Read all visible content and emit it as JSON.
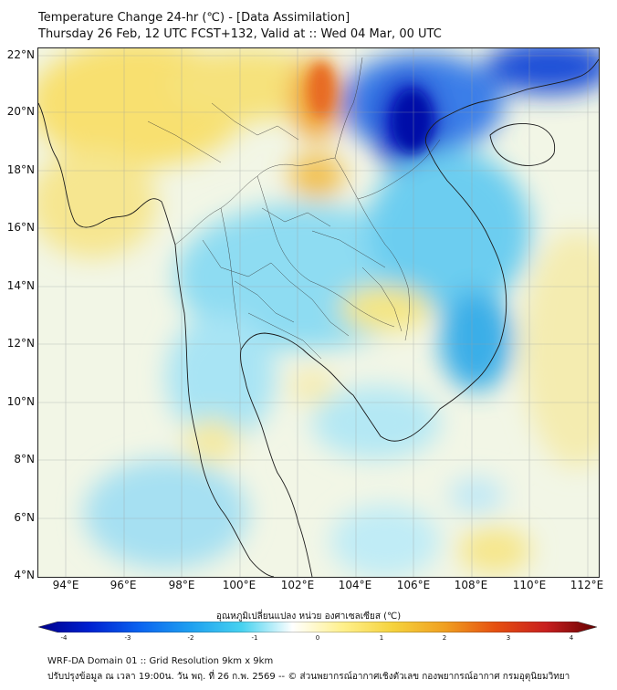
{
  "title_line1": "Temperature Change 24-hr (℃) - [Data Assimilation]",
  "title_line2": "Thursday 26 Feb, 12 UTC FCST+132, Valid at :: Wed 04 Mar, 00 UTC",
  "lat_labels": [
    "22°N",
    "20°N",
    "18°N",
    "16°N",
    "14°N",
    "12°N",
    "10°N",
    "8°N",
    "6°N",
    "4°N"
  ],
  "lon_labels": [
    "94°E",
    "96°E",
    "98°E",
    "100°E",
    "102°E",
    "104°E",
    "106°E",
    "108°E",
    "110°E",
    "112°E"
  ],
  "colorbar": {
    "title": "อุณหภูมิเปลี่ยนแปลง หน่วย องศาเซลเซียส (℃)",
    "ticks": [
      "-4",
      "-3",
      "-2",
      "-1",
      "0",
      "1",
      "2",
      "3",
      "4"
    ],
    "colors": [
      "#00008b",
      "#0020d0",
      "#0a64f0",
      "#1ea0f0",
      "#46d2f0",
      "#ffffff",
      "#fff08c",
      "#f5d23c",
      "#f0a020",
      "#e65010",
      "#c81e1e",
      "#640000"
    ]
  },
  "footer_line1": "WRF-DA Domain 01 :: Grid Resolution 9km x 9km",
  "footer_line2": "ปรับปรุงข้อมูล ณ เวลา 19:00น. วัน พฤ. ที่ 26 ก.พ. 2569 -- © ส่วนพยากรณ์อากาศเชิงตัวเลข กองพยากรณ์อากาศ กรมอุตุนิยมวิทยา"
}
